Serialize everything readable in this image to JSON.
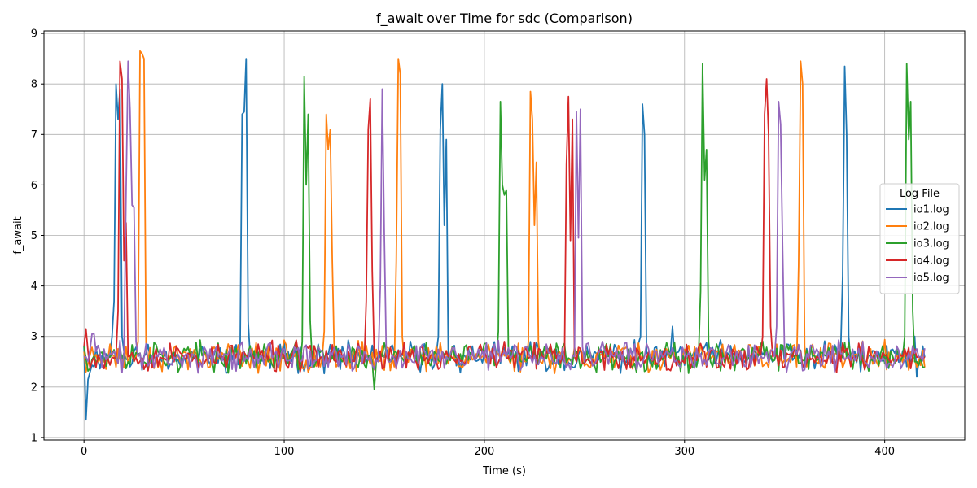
{
  "chart_data": {
    "type": "line",
    "title": "f_await over Time for sdc (Comparison)",
    "xlabel": "Time (s)",
    "ylabel": "f_await",
    "xlim": [
      -20,
      440
    ],
    "ylim": [
      0.95,
      9.05
    ],
    "xticks": [
      0,
      100,
      200,
      300,
      400
    ],
    "yticks": [
      1,
      2,
      3,
      4,
      5,
      6,
      7,
      8,
      9
    ],
    "grid": true,
    "legend": {
      "title": "Log File",
      "placement": "center-right"
    },
    "baseline": {
      "min": 2.25,
      "max": 2.95
    },
    "x_end": 420,
    "series": [
      {
        "name": "io1.log",
        "color": "#1f77b4",
        "seed": 11,
        "x": [
          0,
          1,
          2,
          3,
          14,
          15,
          16,
          17,
          18,
          19,
          20,
          78,
          79,
          80,
          81,
          82,
          83,
          177,
          178,
          179,
          180,
          181,
          182,
          183,
          278,
          279,
          280,
          281,
          282,
          293,
          294,
          295,
          379,
          380,
          381,
          382,
          383,
          415,
          416,
          417
        ],
        "y": [
          2.8,
          1.35,
          2.15,
          2.3,
          3.0,
          3.7,
          8.0,
          7.3,
          7.9,
          3.0,
          2.7,
          2.9,
          7.4,
          7.45,
          8.5,
          3.3,
          2.6,
          3.0,
          7.1,
          8.0,
          5.2,
          6.9,
          2.5,
          2.6,
          3.0,
          7.6,
          7.0,
          2.7,
          2.6,
          2.7,
          3.2,
          2.6,
          4.2,
          8.35,
          7.0,
          3.0,
          2.5,
          3.0,
          2.2,
          2.5
        ]
      },
      {
        "name": "io2.log",
        "color": "#ff7f0e",
        "seed": 23,
        "x": [
          0,
          1,
          26,
          27,
          28,
          29,
          30,
          31,
          118,
          119,
          120,
          121,
          122,
          123,
          124,
          125,
          126,
          155,
          156,
          157,
          158,
          159,
          160,
          222,
          223,
          224,
          225,
          226,
          227,
          228,
          356,
          357,
          358,
          359,
          360,
          361
        ],
        "y": [
          2.7,
          2.3,
          2.6,
          2.9,
          8.65,
          8.6,
          8.5,
          2.8,
          2.4,
          2.6,
          3.1,
          7.4,
          6.7,
          7.1,
          4.5,
          2.7,
          2.4,
          2.4,
          4.5,
          8.5,
          8.2,
          3.0,
          2.5,
          2.9,
          7.85,
          7.3,
          5.2,
          6.45,
          2.9,
          2.5,
          2.4,
          4.4,
          8.45,
          8.0,
          2.8,
          2.4
        ]
      },
      {
        "name": "io3.log",
        "color": "#2ca02c",
        "seed": 37,
        "x": [
          0,
          108,
          109,
          110,
          111,
          112,
          113,
          114,
          115,
          144,
          145,
          146,
          206,
          207,
          208,
          209,
          210,
          211,
          212,
          213,
          307,
          308,
          309,
          310,
          311,
          312,
          313,
          314,
          409,
          410,
          411,
          412,
          413,
          414,
          415,
          416
        ],
        "y": [
          2.8,
          2.4,
          2.9,
          8.15,
          6.0,
          7.4,
          3.3,
          2.5,
          2.4,
          2.5,
          1.95,
          2.5,
          2.5,
          3.1,
          7.65,
          6.0,
          5.8,
          5.9,
          2.8,
          2.5,
          2.6,
          3.9,
          8.4,
          6.1,
          6.7,
          2.9,
          2.5,
          2.4,
          2.6,
          3.0,
          8.4,
          6.9,
          7.65,
          3.5,
          2.5,
          2.5
        ]
      },
      {
        "name": "io4.log",
        "color": "#d62728",
        "seed": 53,
        "x": [
          0,
          1,
          2,
          16,
          17,
          18,
          19,
          20,
          21,
          22,
          140,
          141,
          142,
          143,
          144,
          145,
          146,
          240,
          241,
          242,
          243,
          244,
          245,
          246,
          338,
          339,
          340,
          341,
          342,
          343,
          344,
          420
        ],
        "y": [
          2.8,
          3.15,
          2.7,
          2.6,
          3.5,
          8.45,
          8.1,
          4.5,
          5.25,
          2.6,
          2.5,
          3.7,
          7.1,
          7.7,
          4.3,
          2.6,
          2.5,
          2.5,
          6.4,
          7.75,
          4.9,
          7.3,
          2.6,
          2.5,
          2.6,
          3.0,
          7.4,
          8.1,
          7.0,
          3.2,
          2.6,
          2.6
        ]
      },
      {
        "name": "io5.log",
        "color": "#9467bd",
        "seed": 71,
        "x": [
          0,
          4,
          5,
          6,
          20,
          21,
          22,
          23,
          24,
          25,
          26,
          27,
          147,
          148,
          149,
          150,
          151,
          152,
          245,
          246,
          247,
          248,
          249,
          250,
          345,
          346,
          347,
          348,
          349,
          350,
          351,
          352,
          418
        ],
        "y": [
          2.6,
          3.05,
          3.05,
          2.7,
          2.7,
          5.8,
          8.45,
          7.5,
          5.6,
          5.55,
          2.9,
          2.6,
          2.5,
          4.0,
          7.9,
          5.0,
          2.7,
          2.5,
          2.6,
          7.45,
          4.95,
          7.5,
          2.8,
          2.5,
          2.6,
          3.2,
          7.65,
          7.2,
          4.7,
          2.6,
          2.3,
          2.5,
          2.6
        ]
      }
    ]
  }
}
